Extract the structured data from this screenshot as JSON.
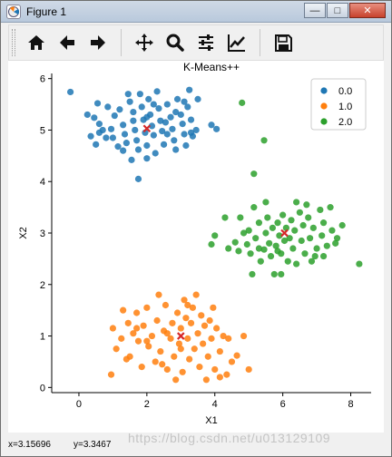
{
  "window": {
    "title": "Figure 1"
  },
  "toolbar": {
    "buttons": [
      {
        "icon": "home-icon"
      },
      {
        "icon": "back-arrow-icon"
      },
      {
        "icon": "forward-arrow-icon"
      },
      {
        "icon": "pan-icon"
      },
      {
        "icon": "zoom-icon"
      },
      {
        "icon": "configure-subplots-icon"
      },
      {
        "icon": "edit-axis-icon"
      },
      {
        "icon": "save-icon"
      }
    ]
  },
  "status": {
    "x": "x=3.15696",
    "y": "y=3.3467"
  },
  "watermark": "https://blog.csdn.net/u013129109",
  "colors": {
    "c0": "#1f77b4",
    "c1": "#ff7f0e",
    "c2": "#2ca02c",
    "centroid": "#d62728"
  },
  "chart_data": {
    "type": "scatter",
    "title": "K-Means++",
    "xlabel": "X1",
    "ylabel": "X2",
    "xlim": [
      -0.8,
      8.6
    ],
    "ylim": [
      -0.1,
      6.1
    ],
    "xticks": [
      0,
      2,
      4,
      6,
      8
    ],
    "yticks": [
      0,
      1,
      2,
      3,
      4,
      5,
      6
    ],
    "legend_position": "top-right",
    "legend": [
      "0.0",
      "1.0",
      "2.0"
    ],
    "centroids": [
      [
        2.0,
        5.03
      ],
      [
        3.0,
        1.0
      ],
      [
        6.05,
        3.0
      ]
    ],
    "series": [
      {
        "name": "0.0",
        "points": [
          [
            -0.25,
            5.74
          ],
          [
            0.25,
            5.3
          ],
          [
            0.45,
            5.24
          ],
          [
            0.55,
            5.52
          ],
          [
            0.6,
            5.12
          ],
          [
            0.7,
            5.0
          ],
          [
            0.8,
            4.85
          ],
          [
            0.35,
            4.88
          ],
          [
            0.5,
            4.72
          ],
          [
            0.95,
            5.02
          ],
          [
            1.05,
            5.28
          ],
          [
            1.2,
            5.4
          ],
          [
            1.3,
            5.1
          ],
          [
            1.35,
            4.92
          ],
          [
            1.4,
            4.75
          ],
          [
            1.5,
            5.55
          ],
          [
            1.6,
            5.35
          ],
          [
            1.65,
            5.0
          ],
          [
            1.7,
            4.8
          ],
          [
            1.75,
            4.62
          ],
          [
            1.8,
            5.7
          ],
          [
            1.85,
            5.45
          ],
          [
            1.9,
            5.2
          ],
          [
            1.95,
            4.95
          ],
          [
            2.0,
            4.7
          ],
          [
            2.05,
            5.6
          ],
          [
            2.1,
            5.3
          ],
          [
            2.15,
            5.08
          ],
          [
            2.2,
            4.9
          ],
          [
            2.25,
            4.55
          ],
          [
            2.3,
            5.75
          ],
          [
            2.35,
            5.42
          ],
          [
            2.4,
            5.18
          ],
          [
            2.45,
            4.98
          ],
          [
            2.5,
            4.72
          ],
          [
            2.6,
            5.5
          ],
          [
            2.7,
            5.25
          ],
          [
            2.75,
            5.02
          ],
          [
            2.8,
            4.8
          ],
          [
            2.85,
            4.62
          ],
          [
            2.9,
            5.6
          ],
          [
            3.0,
            5.3
          ],
          [
            3.05,
            5.12
          ],
          [
            3.1,
            4.92
          ],
          [
            3.15,
            4.7
          ],
          [
            3.2,
            5.45
          ],
          [
            3.25,
            5.78
          ],
          [
            3.3,
            5.2
          ],
          [
            3.35,
            4.88
          ],
          [
            3.45,
            5.0
          ],
          [
            1.55,
            4.42
          ],
          [
            1.75,
            4.05
          ],
          [
            2.0,
            4.45
          ],
          [
            1.3,
            4.6
          ],
          [
            2.6,
            4.92
          ],
          [
            3.9,
            5.1
          ],
          [
            4.05,
            5.02
          ],
          [
            3.5,
            5.6
          ],
          [
            1.0,
            4.85
          ],
          [
            2.85,
            5.35
          ],
          [
            0.85,
            5.45
          ],
          [
            1.15,
            4.68
          ],
          [
            2.2,
            5.5
          ],
          [
            3.1,
            5.55
          ],
          [
            1.6,
            5.18
          ],
          [
            2.55,
            5.15
          ],
          [
            1.45,
            5.7
          ],
          [
            3.3,
            4.95
          ],
          [
            0.6,
            4.95
          ],
          [
            2.0,
            5.25
          ]
        ]
      },
      {
        "name": "1.0",
        "points": [
          [
            0.95,
            0.25
          ],
          [
            1.0,
            1.15
          ],
          [
            1.1,
            0.75
          ],
          [
            1.3,
            1.5
          ],
          [
            1.45,
            1.25
          ],
          [
            1.5,
            0.6
          ],
          [
            1.6,
            1.05
          ],
          [
            1.7,
            1.45
          ],
          [
            1.75,
            0.9
          ],
          [
            1.85,
            0.4
          ],
          [
            1.9,
            1.2
          ],
          [
            2.0,
            1.55
          ],
          [
            2.05,
            0.8
          ],
          [
            2.15,
            1.0
          ],
          [
            2.25,
            0.5
          ],
          [
            2.3,
            1.3
          ],
          [
            2.4,
            0.7
          ],
          [
            2.5,
            1.1
          ],
          [
            2.55,
            1.6
          ],
          [
            2.6,
            0.35
          ],
          [
            2.7,
            0.95
          ],
          [
            2.75,
            1.25
          ],
          [
            2.8,
            0.6
          ],
          [
            2.9,
            1.45
          ],
          [
            2.95,
            0.85
          ],
          [
            3.0,
            1.15
          ],
          [
            3.05,
            0.3
          ],
          [
            3.1,
            1.7
          ],
          [
            3.15,
            1.35
          ],
          [
            3.2,
            0.95
          ],
          [
            3.25,
            0.55
          ],
          [
            3.3,
            1.25
          ],
          [
            3.35,
            1.55
          ],
          [
            3.4,
            0.75
          ],
          [
            3.5,
            1.05
          ],
          [
            3.55,
            0.4
          ],
          [
            3.6,
            1.4
          ],
          [
            3.65,
            0.85
          ],
          [
            3.7,
            1.2
          ],
          [
            3.8,
            0.6
          ],
          [
            3.85,
            1.3
          ],
          [
            3.9,
            0.95
          ],
          [
            4.0,
            0.35
          ],
          [
            4.05,
            1.15
          ],
          [
            4.15,
            0.7
          ],
          [
            4.25,
            1.0
          ],
          [
            4.35,
            0.25
          ],
          [
            4.65,
            0.62
          ],
          [
            4.85,
            1.0
          ],
          [
            5.0,
            0.35
          ],
          [
            1.4,
            0.55
          ],
          [
            2.35,
            1.8
          ],
          [
            2.6,
            1.05
          ],
          [
            3.2,
            1.6
          ],
          [
            2.0,
            0.9
          ],
          [
            3.45,
            1.8
          ],
          [
            4.4,
            0.95
          ],
          [
            1.25,
            0.95
          ],
          [
            3.95,
            1.55
          ],
          [
            2.85,
            0.15
          ],
          [
            3.75,
            0.15
          ],
          [
            4.15,
            0.2
          ],
          [
            2.45,
            0.45
          ],
          [
            3.0,
            0.75
          ],
          [
            4.5,
            0.5
          ],
          [
            1.7,
            1.15
          ]
        ]
      },
      {
        "name": "2.0",
        "points": [
          [
            4.8,
            5.53
          ],
          [
            5.15,
            4.15
          ],
          [
            5.45,
            4.8
          ],
          [
            4.0,
            2.95
          ],
          [
            3.9,
            2.78
          ],
          [
            4.4,
            2.7
          ],
          [
            4.6,
            2.82
          ],
          [
            4.75,
            3.3
          ],
          [
            4.85,
            3.0
          ],
          [
            4.95,
            2.78
          ],
          [
            5.05,
            2.6
          ],
          [
            5.1,
            2.2
          ],
          [
            5.2,
            2.9
          ],
          [
            5.3,
            3.2
          ],
          [
            5.35,
            2.45
          ],
          [
            5.45,
            2.68
          ],
          [
            5.5,
            3.0
          ],
          [
            5.55,
            3.3
          ],
          [
            5.6,
            2.8
          ],
          [
            5.65,
            2.55
          ],
          [
            5.7,
            3.1
          ],
          [
            5.75,
            2.2
          ],
          [
            5.8,
            2.75
          ],
          [
            5.85,
            3.2
          ],
          [
            5.9,
            2.95
          ],
          [
            5.95,
            2.6
          ],
          [
            6.0,
            3.35
          ],
          [
            6.05,
            2.85
          ],
          [
            6.1,
            3.1
          ],
          [
            6.15,
            2.45
          ],
          [
            6.2,
            2.9
          ],
          [
            6.25,
            3.25
          ],
          [
            6.3,
            2.7
          ],
          [
            6.35,
            3.05
          ],
          [
            6.4,
            2.4
          ],
          [
            6.5,
            3.4
          ],
          [
            6.55,
            2.85
          ],
          [
            6.6,
            3.15
          ],
          [
            6.65,
            2.6
          ],
          [
            6.75,
            3.3
          ],
          [
            6.8,
            2.9
          ],
          [
            6.9,
            3.1
          ],
          [
            7.0,
            2.7
          ],
          [
            7.1,
            3.45
          ],
          [
            7.15,
            2.95
          ],
          [
            7.2,
            3.2
          ],
          [
            7.3,
            2.75
          ],
          [
            7.4,
            3.5
          ],
          [
            7.45,
            3.05
          ],
          [
            7.6,
            2.9
          ],
          [
            7.75,
            3.15
          ],
          [
            8.25,
            2.4
          ],
          [
            7.2,
            2.55
          ],
          [
            6.85,
            2.45
          ],
          [
            5.0,
            3.05
          ],
          [
            4.3,
            3.3
          ],
          [
            5.5,
            3.6
          ],
          [
            6.4,
            3.6
          ],
          [
            5.3,
            2.7
          ],
          [
            5.85,
            2.65
          ],
          [
            6.95,
            2.55
          ],
          [
            7.55,
            2.8
          ],
          [
            5.95,
            2.2
          ],
          [
            6.7,
            3.55
          ],
          [
            4.7,
            2.65
          ],
          [
            5.15,
            3.5
          ]
        ]
      }
    ]
  }
}
